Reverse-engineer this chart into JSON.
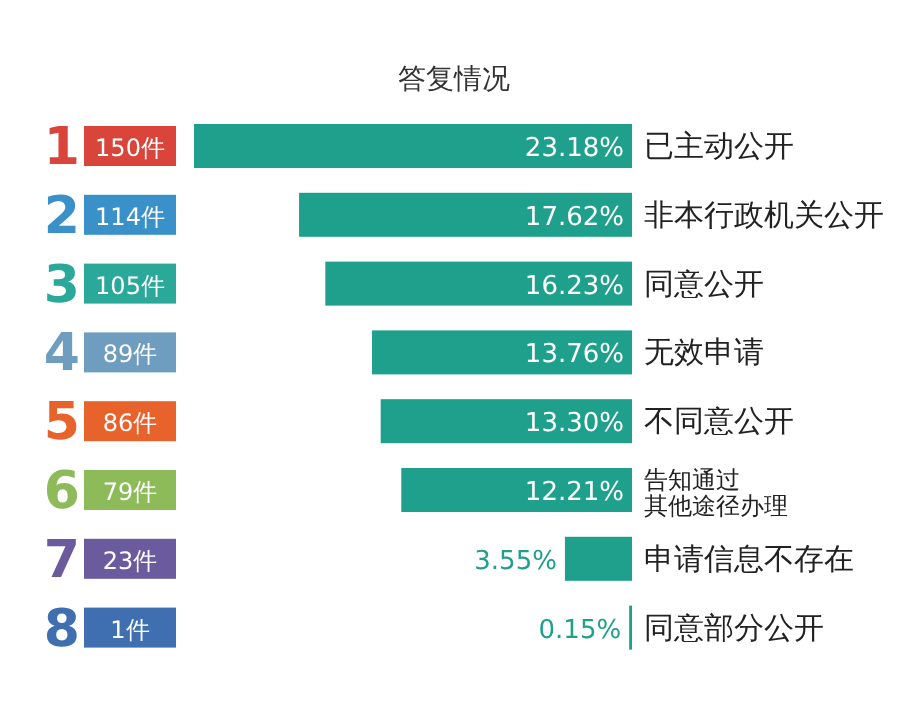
{
  "chart_data": {
    "type": "bar",
    "orientation": "horizontal",
    "title": "答复情况",
    "categories": [
      "已主动公开",
      "非本行政机关公开",
      "同意公开",
      "无效申请",
      "不同意公开",
      "告知通过其他途径办理",
      "申请信息不存在",
      "同意部分公开"
    ],
    "values": [
      23.18,
      17.62,
      16.23,
      13.76,
      13.3,
      12.21,
      3.55,
      0.15
    ],
    "value_labels": [
      "23.18%",
      "17.62%",
      "16.23%",
      "13.76%",
      "13.30%",
      "12.21%",
      "3.55%",
      "0.15%"
    ],
    "color": "#1fa08c",
    "annotations": [
      "1",
      "150件",
      "2",
      "114件",
      "3",
      "105件",
      "4",
      "89件",
      "5",
      "86件",
      "6",
      "79件",
      "7",
      "23件",
      "8",
      "1件"
    ]
  }
}
